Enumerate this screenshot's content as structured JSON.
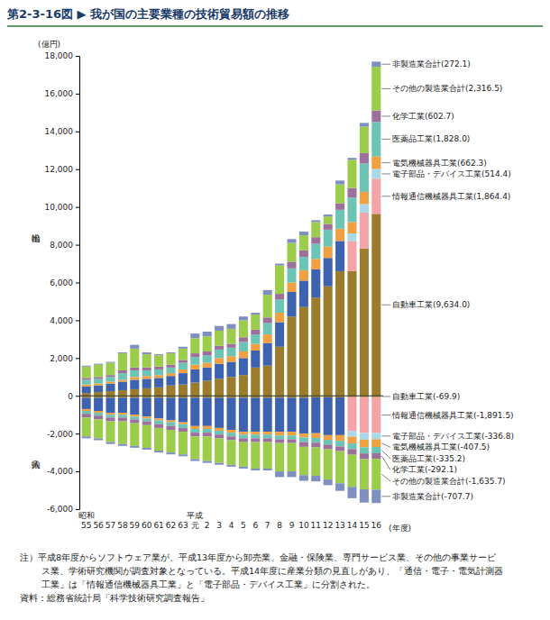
{
  "chart_data": {
    "type": "bar",
    "stacked": true,
    "grid": false,
    "title": "第2-3-16図 ▶ 我が国の主要業種の技術貿易額の推移",
    "ylabel": "(億円)",
    "xlabel": "(年度)",
    "export_label": "輸出",
    "import_label": "輸入",
    "era_labels": [
      {
        "text": "昭和",
        "category_index": 0
      },
      {
        "text": "平成",
        "category_index": 9
      }
    ],
    "categories": [
      "55",
      "56",
      "57",
      "58",
      "59",
      "60",
      "61",
      "62",
      "63",
      "元",
      "2",
      "3",
      "4",
      "5",
      "6",
      "7",
      "8",
      "9",
      "10",
      "11",
      "12",
      "13",
      "14",
      "15",
      "16"
    ],
    "ylim": [
      -6000,
      18000
    ],
    "yticks": [
      {
        "value": -6000,
        "label": "-6,000"
      },
      {
        "value": -4000,
        "label": "-4,000"
      },
      {
        "value": -2000,
        "label": "-2,000"
      },
      0,
      {
        "value": 2000,
        "label": "2,000"
      },
      {
        "value": 4000,
        "label": "4,000"
      },
      {
        "value": 6000,
        "label": "6,000"
      },
      {
        "value": 8000,
        "label": "8,000"
      },
      {
        "value": 10000,
        "label": "10,000"
      },
      {
        "value": 12000,
        "label": "12,000"
      },
      {
        "value": 14000,
        "label": "14,000"
      },
      {
        "value": 16000,
        "label": "16,000"
      },
      {
        "value": 18000,
        "label": "18,000"
      }
    ],
    "series": [
      {
        "name": "自動車工業",
        "color": "#9b7c2c",
        "values": [
          150,
          200,
          250,
          300,
          350,
          400,
          450,
          550,
          600,
          700,
          800,
          900,
          1000,
          1100,
          1500,
          1600,
          2600,
          4200,
          4700,
          5200,
          5800,
          6600,
          6600,
          7800,
          9634.0
        ],
        "import_values": [
          -100,
          -100,
          -100,
          -100,
          -100,
          -100,
          -100,
          -100,
          -100,
          -100,
          -100,
          -100,
          -100,
          -100,
          -100,
          -100,
          -100,
          -100,
          -100,
          -80,
          -80,
          -80,
          -70,
          -70,
          -69.9
        ],
        "export_value_label": "(9,634.0)",
        "import_value_label": "(-69.9)"
      },
      {
        "color": "#3d62b0",
        "values": [
          350,
          350,
          400,
          450,
          500,
          500,
          500,
          500,
          600,
          700,
          700,
          800,
          800,
          900,
          900,
          1200,
          1300,
          1300,
          1400,
          1500,
          1500,
          1600,
          null,
          null,
          null
        ],
        "import_values": [
          -600,
          -700,
          -800,
          -800,
          -900,
          -1000,
          -1100,
          -1200,
          -1300,
          -1500,
          -1500,
          -1600,
          -1700,
          -1800,
          -1800,
          -1800,
          -1800,
          -1800,
          -1900,
          -1900,
          -2000,
          -2000,
          null,
          null,
          null
        ]
      },
      {
        "name": "情報通信機械器具工業",
        "color": "#f4a3a8",
        "values": [
          null,
          null,
          null,
          null,
          null,
          null,
          null,
          null,
          null,
          null,
          null,
          null,
          null,
          null,
          null,
          null,
          null,
          null,
          null,
          null,
          null,
          null,
          1600,
          1900,
          1864.4
        ],
        "import_values": [
          null,
          null,
          null,
          null,
          null,
          null,
          null,
          null,
          null,
          null,
          null,
          null,
          null,
          null,
          null,
          null,
          null,
          null,
          null,
          null,
          null,
          null,
          -1800,
          -1900,
          -1891.5
        ],
        "export_value_label": "(1,864.4)",
        "import_value_label": "(-1,891.5)"
      },
      {
        "name": "電子部品・デバイス工業",
        "color": "#a9d8e8",
        "values": [
          null,
          null,
          null,
          null,
          null,
          null,
          null,
          null,
          null,
          null,
          null,
          null,
          null,
          null,
          null,
          null,
          null,
          null,
          null,
          null,
          null,
          null,
          400,
          450,
          514.4
        ],
        "import_values": [
          null,
          null,
          null,
          null,
          null,
          null,
          null,
          null,
          null,
          null,
          null,
          null,
          null,
          null,
          null,
          null,
          null,
          null,
          null,
          null,
          null,
          null,
          -300,
          -350,
          -336.8
        ],
        "export_value_label": "(514.4)",
        "import_value_label": "(-336.8)"
      },
      {
        "name": "電気機械器具工業",
        "color": "#f0a040",
        "values": [
          100,
          100,
          100,
          100,
          150,
          150,
          150,
          150,
          200,
          250,
          250,
          300,
          300,
          350,
          350,
          450,
          500,
          500,
          550,
          550,
          600,
          650,
          600,
          650,
          662.3
        ],
        "import_values": [
          -100,
          -100,
          -100,
          -100,
          -100,
          -100,
          -100,
          -100,
          -100,
          -150,
          -150,
          -150,
          -150,
          -150,
          -150,
          -150,
          -200,
          -200,
          -200,
          -250,
          -250,
          -300,
          -350,
          -400,
          -407.5
        ],
        "export_value_label": "(662.3)",
        "import_value_label": "(-407.5)"
      },
      {
        "name": "医薬品工業",
        "color": "#6cc4b4",
        "values": [
          250,
          250,
          250,
          350,
          350,
          300,
          300,
          300,
          350,
          400,
          400,
          450,
          450,
          500,
          500,
          600,
          700,
          750,
          700,
          800,
          900,
          1000,
          1300,
          1500,
          1828.0
        ],
        "import_values": [
          -150,
          -150,
          -150,
          -150,
          -150,
          -150,
          -200,
          -200,
          -200,
          -200,
          -200,
          -200,
          -200,
          -200,
          -200,
          -200,
          -200,
          -200,
          -250,
          -250,
          -250,
          -300,
          -300,
          -330,
          -335.2
        ],
        "export_value_label": "(1,828.0)",
        "import_value_label": "(-335.2)"
      },
      {
        "name": "化学工業",
        "color": "#9c6f9c",
        "values": [
          100,
          100,
          100,
          150,
          150,
          150,
          150,
          150,
          150,
          200,
          200,
          200,
          200,
          250,
          250,
          300,
          300,
          350,
          350,
          350,
          300,
          350,
          500,
          550,
          602.7
        ],
        "import_values": [
          -200,
          -200,
          -200,
          -200,
          -200,
          -200,
          -200,
          -200,
          -200,
          -200,
          -200,
          -200,
          -200,
          -200,
          -200,
          -200,
          -200,
          -200,
          -250,
          -250,
          -250,
          -250,
          -300,
          -300,
          -292.1
        ],
        "export_value_label": "(602.7)",
        "import_value_label": "(-292.1)"
      },
      {
        "name": "その他の製造業合計",
        "color": "#9bcc4a",
        "values": [
          600,
          650,
          650,
          900,
          1000,
          700,
          600,
          600,
          600,
          800,
          800,
          800,
          800,
          900,
          800,
          1200,
          1500,
          1000,
          800,
          800,
          400,
          1000,
          1500,
          1400,
          2316.5
        ],
        "import_values": [
          -1000,
          -1000,
          -1100,
          -1200,
          -1200,
          -1200,
          -1200,
          -1200,
          -1200,
          -1200,
          -1300,
          -1300,
          -1300,
          -1300,
          -1400,
          -1400,
          -1500,
          -1500,
          -1500,
          -1500,
          -1600,
          -1700,
          -1700,
          -1600,
          -1635.7
        ],
        "export_value_label": "(2,316.5)",
        "import_value_label": "(-1,635.7)"
      },
      {
        "name": "非製造業合計",
        "color": "#7f8fc0",
        "values": [
          50,
          50,
          50,
          50,
          200,
          100,
          50,
          50,
          100,
          250,
          250,
          250,
          250,
          200,
          100,
          250,
          100,
          200,
          200,
          100,
          100,
          200,
          100,
          200,
          272.1
        ],
        "import_values": [
          -100,
          -100,
          -100,
          -100,
          -100,
          -100,
          -100,
          -100,
          -100,
          -100,
          -100,
          -100,
          -100,
          -100,
          -100,
          -100,
          -300,
          -300,
          -300,
          -300,
          -300,
          -400,
          -600,
          -700,
          -707.7
        ],
        "export_value_label": "(272.1)",
        "import_value_label": "(-707.7)"
      }
    ],
    "note": [
      "注）平成8年度からソフトウェア業が、平成13年度から卸売業、金融・保険業、専門サービス業、その他の事業サービ",
      "ス業、学術研究機関が調査対象となっている。平成14年度に産業分類の見直しがあり、「通信・電子・電気計測器",
      "工業」は「情報通信機械器具工業」と「電子部品・デバイス工業」に分割された。"
    ],
    "source": "資料：総務省統計局「科学技術研究調査報告」"
  }
}
